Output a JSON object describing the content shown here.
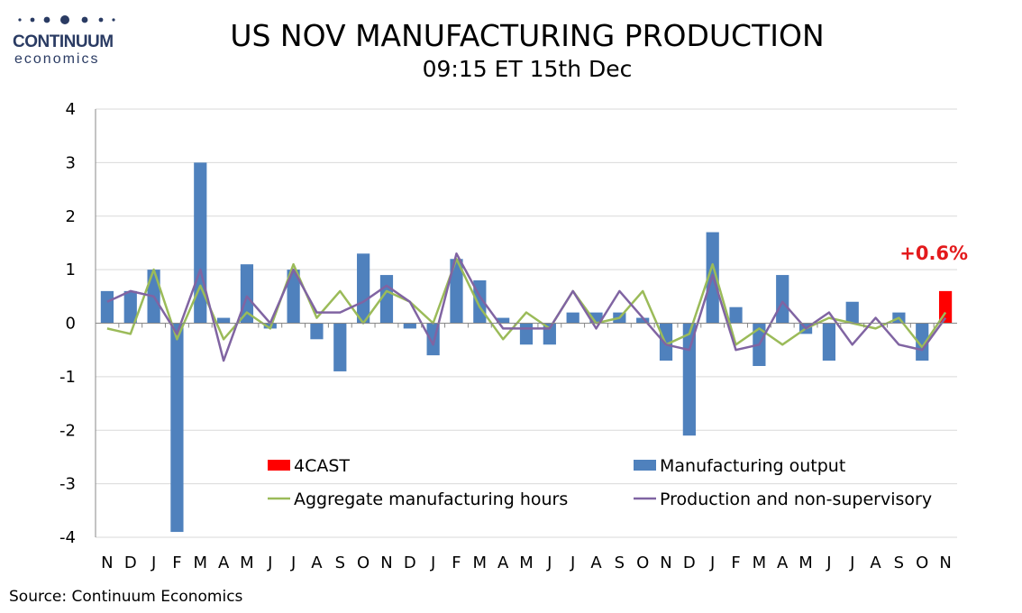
{
  "logo": {
    "name": "CONTINUUM",
    "sub": "economics"
  },
  "title": "US NOV MANUFACTURING PRODUCTION",
  "subtitle": "09:15 ET 15th Dec",
  "source": "Source: Continuum Economics",
  "colors": {
    "bars": "#4f81bd",
    "forecast": "#ff0000",
    "hours": "#9bbb59",
    "nonsup": "#8064a2",
    "grid": "#d9d9d9"
  },
  "chart_data": {
    "type": "bar",
    "categories": [
      "N",
      "D",
      "J",
      "F",
      "M",
      "A",
      "M",
      "J",
      "J",
      "A",
      "S",
      "O",
      "N",
      "D",
      "J",
      "F",
      "M",
      "A",
      "M",
      "J",
      "J",
      "A",
      "S",
      "O",
      "N",
      "D",
      "J",
      "F",
      "M",
      "A",
      "M",
      "J",
      "J",
      "A",
      "S",
      "O",
      "N"
    ],
    "ylim": [
      -4,
      4
    ],
    "yticks": [
      "4",
      "3",
      "2",
      "1",
      "0",
      "-1",
      "-2",
      "-3",
      "-4"
    ],
    "grid": true,
    "legend_position": "bottom-right",
    "annotation": "+0.6%",
    "series": [
      {
        "name": "Manufacturing output",
        "type": "bar",
        "values": [
          0.6,
          0.6,
          1.0,
          -3.9,
          3.0,
          0.1,
          1.1,
          -0.1,
          1.0,
          -0.3,
          -0.9,
          1.3,
          0.9,
          -0.1,
          -0.6,
          1.2,
          0.8,
          0.1,
          -0.4,
          -0.4,
          0.2,
          0.2,
          0.2,
          0.1,
          -0.7,
          -2.1,
          1.7,
          0.3,
          -0.8,
          0.9,
          -0.2,
          -0.7,
          0.4,
          0.0,
          0.2,
          -0.7,
          null
        ]
      },
      {
        "name": "4CAST",
        "type": "bar",
        "values": [
          null,
          null,
          null,
          null,
          null,
          null,
          null,
          null,
          null,
          null,
          null,
          null,
          null,
          null,
          null,
          null,
          null,
          null,
          null,
          null,
          null,
          null,
          null,
          null,
          null,
          null,
          null,
          null,
          null,
          null,
          null,
          null,
          null,
          null,
          null,
          null,
          0.6
        ]
      },
      {
        "name": "Aggregate manufacturing hours",
        "type": "line",
        "values": [
          -0.1,
          -0.2,
          1.0,
          -0.3,
          0.7,
          -0.3,
          0.2,
          -0.1,
          1.1,
          0.1,
          0.6,
          0.0,
          0.6,
          0.4,
          0.0,
          1.2,
          0.3,
          -0.3,
          0.2,
          -0.1,
          0.6,
          0.0,
          0.1,
          0.6,
          -0.4,
          -0.2,
          1.1,
          -0.4,
          -0.1,
          -0.4,
          -0.1,
          0.1,
          0.0,
          -0.1,
          0.1,
          -0.45,
          0.2
        ]
      },
      {
        "name": "Production and non-supervisory",
        "type": "line",
        "values": [
          0.4,
          0.6,
          0.5,
          -0.2,
          1.0,
          -0.7,
          0.5,
          0.0,
          1.0,
          0.2,
          0.2,
          0.4,
          0.7,
          0.4,
          -0.4,
          1.3,
          0.5,
          -0.1,
          -0.1,
          -0.1,
          0.6,
          -0.1,
          0.6,
          0.1,
          -0.4,
          -0.5,
          0.9,
          -0.5,
          -0.4,
          0.4,
          -0.1,
          0.2,
          -0.4,
          0.1,
          -0.4,
          -0.5,
          0.1
        ]
      }
    ]
  }
}
